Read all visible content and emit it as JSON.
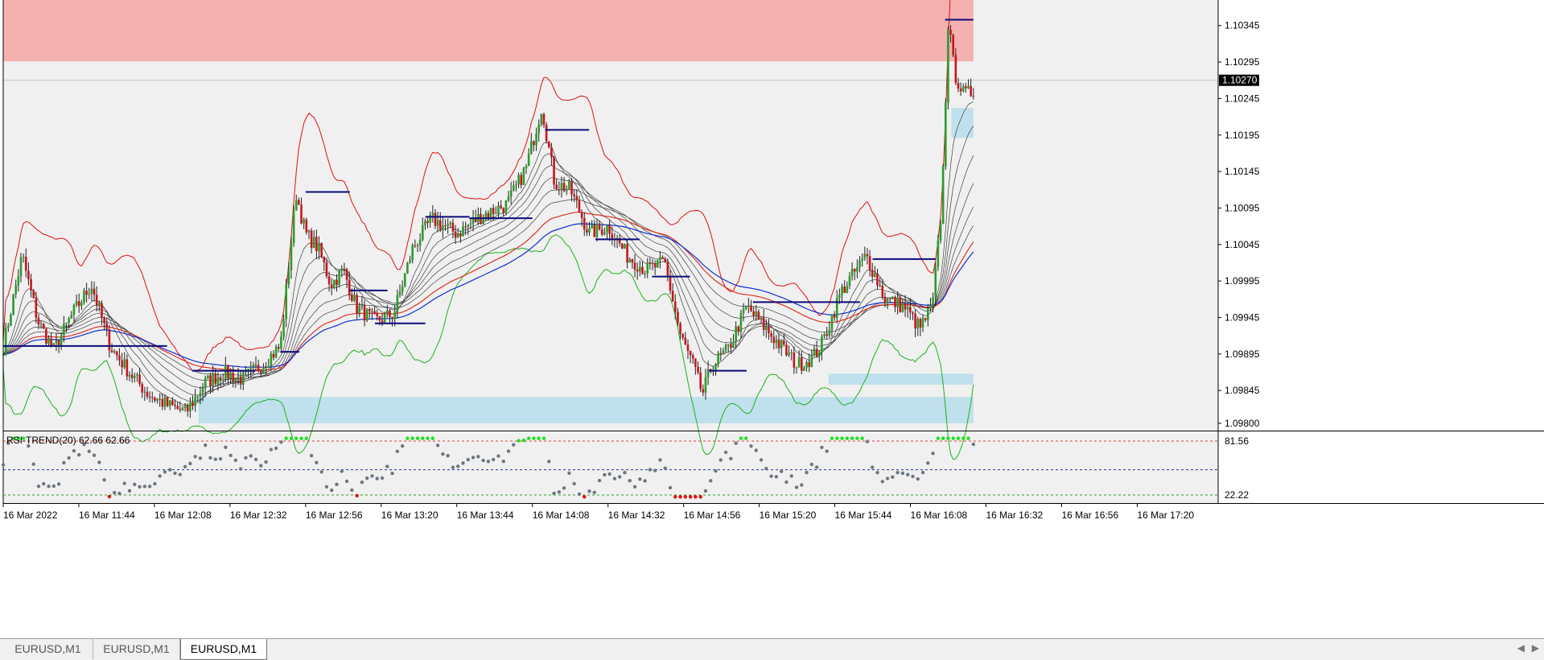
{
  "window": {
    "tabs": [
      {
        "label": "EURUSD,M1",
        "active": false
      },
      {
        "label": "EURUSD,M1",
        "active": false
      },
      {
        "label": "EURUSD,M1",
        "active": true
      }
    ]
  },
  "colors": {
    "background": "#f0f0f0",
    "supply_zone": "#f5b0b0",
    "demand_zone": "#bfe0ec",
    "bull_candle": "#2a9c2a",
    "bear_candle": "#c8141e",
    "level_line": "#0b0b7a",
    "upper_band": "#e01010",
    "lower_band": "#20b020",
    "ema_slow_red": "#e03020",
    "ema_slowest_blue": "#1030d0",
    "ribbon": "#404040",
    "rsi_marker": "#6e7780",
    "rsi_overbought": "#20e020",
    "rsi_oversold": "#e01010"
  },
  "price_axis": {
    "labels": [
      "1.10345",
      "1.10295",
      "1.10245",
      "1.10195",
      "1.10145",
      "1.10095",
      "1.10045",
      "1.09995",
      "1.09945",
      "1.09895",
      "1.09845",
      "1.09800"
    ],
    "current_price": "1.10270",
    "range": [
      1.0979,
      1.1038
    ]
  },
  "time_axis": {
    "labels": [
      "16 Mar 2022",
      "16 Mar 11:44",
      "16 Mar 12:08",
      "16 Mar 12:32",
      "16 Mar 12:56",
      "16 Mar 13:20",
      "16 Mar 13:44",
      "16 Mar 14:08",
      "16 Mar 14:32",
      "16 Mar 14:56",
      "16 Mar 15:20",
      "16 Mar 15:44",
      "16 Mar 16:08",
      "16 Mar 16:32",
      "16 Mar 16:56",
      "16 Mar 17:20"
    ]
  },
  "zones": [
    {
      "type": "supply",
      "from_time_index": 0,
      "to_time_index": 15.4,
      "price_low": 1.10296,
      "price_high": 1.1038
    },
    {
      "type": "demand",
      "from_time_index": 3.1,
      "to_time_index": 15.4,
      "price_low": 1.098,
      "price_high": 1.09836
    },
    {
      "type": "demand",
      "from_time_index": 13.1,
      "to_time_index": 15.4,
      "price_low": 1.09853,
      "price_high": 1.09868
    },
    {
      "type": "demand",
      "from_time_index": 15.05,
      "to_time_index": 15.4,
      "price_low": 1.10191,
      "price_high": 1.10232
    }
  ],
  "levels": [
    {
      "from": 0.0,
      "to": 2.6,
      "price": 1.09906
    },
    {
      "from": 4.4,
      "to": 4.7,
      "price": 1.09898
    },
    {
      "from": 3.0,
      "to": 4.0,
      "price": 1.09872
    },
    {
      "from": 4.8,
      "to": 5.5,
      "price": 1.10117
    },
    {
      "from": 5.5,
      "to": 6.1,
      "price": 1.09982
    },
    {
      "from": 5.9,
      "to": 6.7,
      "price": 1.09937
    },
    {
      "from": 6.7,
      "to": 7.4,
      "price": 1.10083
    },
    {
      "from": 7.4,
      "to": 8.4,
      "price": 1.10081
    },
    {
      "from": 8.6,
      "to": 9.3,
      "price": 1.10202
    },
    {
      "from": 9.4,
      "to": 10.1,
      "price": 1.10052
    },
    {
      "from": 10.3,
      "to": 10.9,
      "price": 1.10001
    },
    {
      "from": 11.2,
      "to": 11.8,
      "price": 1.09872
    },
    {
      "from": 11.9,
      "to": 13.6,
      "price": 1.09966
    },
    {
      "from": 13.8,
      "to": 14.8,
      "price": 1.10025
    },
    {
      "from": 14.95,
      "to": 15.4,
      "price": 1.10353
    }
  ],
  "close_path": {
    "t": [
      0.0,
      0.3,
      0.55,
      0.8,
      1.1,
      1.4,
      1.7,
      2.0,
      2.3,
      2.6,
      2.9,
      3.2,
      3.5,
      3.8,
      4.1,
      4.4,
      4.65,
      4.8,
      5.0,
      5.2,
      5.4,
      5.6,
      5.9,
      6.2,
      6.5,
      6.8,
      7.0,
      7.2,
      7.6,
      8.0,
      8.3,
      8.55,
      8.75,
      9.0,
      9.3,
      9.6,
      9.9,
      10.2,
      10.5,
      10.75,
      10.95,
      11.1,
      11.25,
      11.5,
      11.8,
      12.0,
      12.3,
      12.6,
      12.85,
      13.0,
      13.3,
      13.7,
      14.0,
      14.3,
      14.55,
      14.75,
      14.9,
      15.0,
      15.1,
      15.25,
      15.4
    ],
    "price": [
      1.09905,
      1.1003,
      1.0994,
      1.099,
      1.0995,
      1.0999,
      1.09905,
      1.0987,
      1.0984,
      1.09825,
      1.09815,
      1.09855,
      1.0987,
      1.0986,
      1.0988,
      1.09905,
      1.10115,
      1.1006,
      1.1004,
      1.0999,
      1.1001,
      1.0996,
      1.0994,
      1.0995,
      1.1004,
      1.1008,
      1.1007,
      1.1006,
      1.10085,
      1.101,
      1.1015,
      1.10235,
      1.1013,
      1.1012,
      1.1006,
      1.1007,
      1.1003,
      1.1001,
      1.1002,
      1.0992,
      1.0988,
      1.0984,
      1.0988,
      1.099,
      1.0996,
      1.0994,
      1.0991,
      1.0988,
      1.0989,
      1.0991,
      1.0998,
      1.1003,
      1.0997,
      1.0996,
      1.0993,
      1.0996,
      1.101,
      1.1035,
      1.1028,
      1.1025,
      1.10255
    ]
  },
  "rsi": {
    "label": "RSI-TREND(20) 62.66 62.66",
    "levels": [
      "81.56",
      "22.22"
    ]
  }
}
